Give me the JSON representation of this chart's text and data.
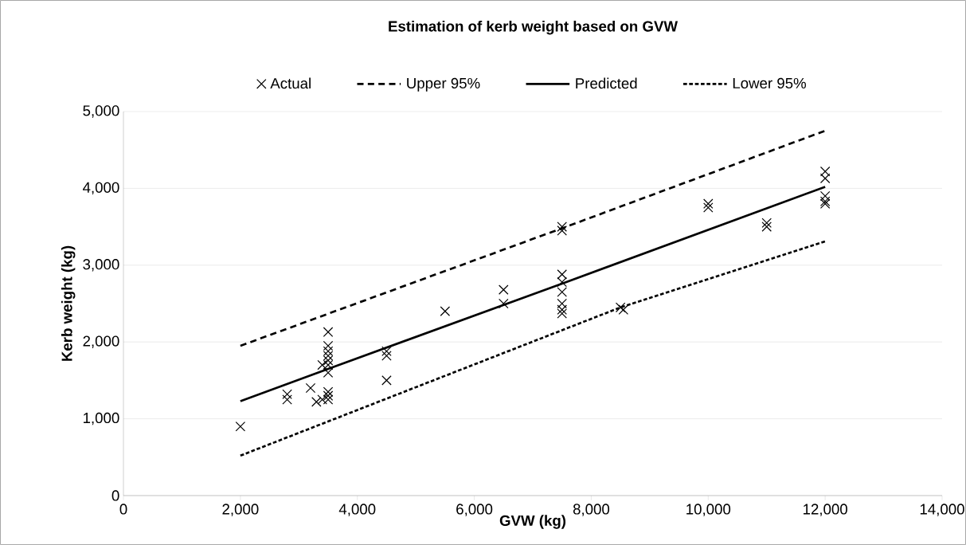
{
  "chart_data": {
    "type": "scatter",
    "title": "Estimation of kerb weight based on GVW",
    "xlabel": "GVW (kg)",
    "ylabel": "Kerb weight (kg)",
    "xlim": [
      0,
      14000
    ],
    "ylim": [
      0,
      5000
    ],
    "xticks": [
      0,
      {
        "value": 2000,
        "label": "2,000"
      },
      {
        "value": 4000,
        "label": "4,000"
      },
      {
        "value": 6000,
        "label": "6,000"
      },
      {
        "value": 8000,
        "label": "8,000"
      },
      {
        "value": 10000,
        "label": "10,000"
      },
      {
        "value": 12000,
        "label": "12,000"
      },
      {
        "value": 14000,
        "label": "14,000"
      }
    ],
    "yticks": [
      0,
      {
        "value": 1000,
        "label": "1,000"
      },
      {
        "value": 2000,
        "label": "2,000"
      },
      {
        "value": 3000,
        "label": "3,000"
      },
      {
        "value": 4000,
        "label": "4,000"
      },
      {
        "value": 5000,
        "label": "5,000"
      }
    ],
    "grid": "y",
    "legend": "top",
    "series": [
      {
        "name": "Actual",
        "marker": "cross",
        "color": "#000000",
        "x": [
          2000,
          2800,
          2800,
          3200,
          3300,
          3400,
          3400,
          3500,
          3500,
          3500,
          3500,
          3500,
          3500,
          3500,
          3500,
          3500,
          3500,
          4500,
          4500,
          4500,
          5500,
          6500,
          6500,
          7500,
          7500,
          7500,
          7500,
          7500,
          7500,
          7500,
          7500,
          8500,
          8550,
          10000,
          10000,
          11000,
          11000,
          12000,
          12000,
          12000,
          12000,
          12000
        ],
        "values": [
          900,
          1250,
          1320,
          1400,
          1220,
          1700,
          1250,
          2130,
          1950,
          1880,
          1820,
          1760,
          1700,
          1600,
          1350,
          1300,
          1250,
          1880,
          1820,
          1500,
          2400,
          2680,
          2500,
          3500,
          3450,
          2880,
          2780,
          2650,
          2500,
          2420,
          2370,
          2450,
          2420,
          3800,
          3750,
          3550,
          3500,
          4220,
          4130,
          3900,
          3830,
          3800
        ]
      },
      {
        "name": "Upper 95%",
        "type": "line",
        "marker": "none",
        "line_style": "dashed",
        "color": "#000000",
        "x": [
          2000,
          7500,
          12000
        ],
        "values": [
          1950,
          3480,
          4750
        ]
      },
      {
        "name": "Predicted",
        "type": "line",
        "marker": "none",
        "line_style": "solid",
        "color": "#000000",
        "x": [
          2000,
          3500,
          7500,
          12000
        ],
        "values": [
          1230,
          1650,
          2760,
          4020
        ]
      },
      {
        "name": "Lower 95%",
        "type": "line",
        "marker": "none",
        "line_style": "dotted",
        "color": "#000000",
        "x": [
          2000,
          8500,
          12000
        ],
        "values": [
          520,
          2450,
          3310
        ]
      }
    ]
  }
}
